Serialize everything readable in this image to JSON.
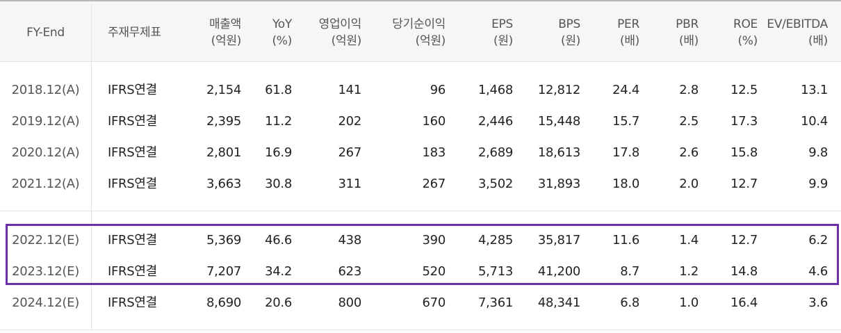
{
  "headers": [
    {
      "line1": "FY-End",
      "line2": ""
    },
    {
      "line1": "주재무제표",
      "line2": ""
    },
    {
      "line1": "매출액",
      "line2": "(억원)"
    },
    {
      "line1": "YoY",
      "line2": "(%)"
    },
    {
      "line1": "영업이익",
      "line2": "(억원)"
    },
    {
      "line1": "당기순이익",
      "line2": "(억원)"
    },
    {
      "line1": "EPS",
      "line2": "(원)"
    },
    {
      "line1": "BPS",
      "line2": "(원)"
    },
    {
      "line1": "PER",
      "line2": "(배)"
    },
    {
      "line1": "PBR",
      "line2": "(배)"
    },
    {
      "line1": "ROE",
      "line2": "(%)"
    },
    {
      "line1": "EV/EBITDA",
      "line2": "(배)"
    }
  ],
  "rows": [
    [
      "2018.12(A)",
      "IFRS연결",
      "2,154",
      "61.8",
      "141",
      "96",
      "1,468",
      "12,812",
      "24.4",
      "2.8",
      "12.5",
      "13.1"
    ],
    [
      "2019.12(A)",
      "IFRS연결",
      "2,395",
      "11.2",
      "202",
      "160",
      "2,446",
      "15,448",
      "15.7",
      "2.5",
      "17.3",
      "10.4"
    ],
    [
      "2020.12(A)",
      "IFRS연결",
      "2,801",
      "16.9",
      "267",
      "183",
      "2,689",
      "18,613",
      "17.8",
      "2.6",
      "15.8",
      "9.8"
    ],
    [
      "2021.12(A)",
      "IFRS연결",
      "3,663",
      "30.8",
      "311",
      "267",
      "3,502",
      "31,893",
      "18.0",
      "2.0",
      "12.7",
      "9.9"
    ],
    [
      "2022.12(E)",
      "IFRS연결",
      "5,369",
      "46.6",
      "438",
      "390",
      "4,285",
      "35,817",
      "11.6",
      "1.4",
      "12.7",
      "6.2"
    ],
    [
      "2023.12(E)",
      "IFRS연결",
      "7,207",
      "34.2",
      "623",
      "520",
      "5,713",
      "41,200",
      "8.7",
      "1.2",
      "14.8",
      "4.6"
    ],
    [
      "2024.12(E)",
      "IFRS연결",
      "8,690",
      "20.6",
      "800",
      "670",
      "7,361",
      "48,341",
      "6.8",
      "1.0",
      "16.4",
      "3.6"
    ]
  ],
  "highlight_color": "#6a2ea8"
}
